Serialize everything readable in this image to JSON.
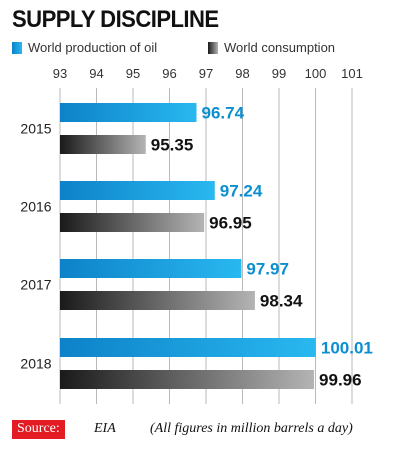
{
  "colors": {
    "production_start": "#0d82c8",
    "production_end": "#29b8f0",
    "consumption_start": "#1a1a1a",
    "consumption_end": "#b4b4b4",
    "production_label": "#0b8fd0",
    "consumption_label": "#111111",
    "source_badge": "#e31b23"
  },
  "footer": {
    "source_label": "Source:",
    "source_value": "EIA",
    "note": "(All figures in million barrels a day)"
  },
  "chart_data": {
    "type": "bar",
    "orientation": "horizontal",
    "title": "SUPPLY DISCIPLINE",
    "categories": [
      "2015",
      "2016",
      "2017",
      "2018"
    ],
    "series": [
      {
        "name": "World production of oil",
        "values": [
          96.74,
          97.24,
          97.97,
          100.01
        ]
      },
      {
        "name": "World consumption",
        "values": [
          95.35,
          96.95,
          98.34,
          99.96
        ]
      }
    ],
    "xlim": [
      93,
      101
    ],
    "ticks": [
      93,
      94,
      95,
      96,
      97,
      98,
      99,
      100,
      101
    ],
    "grid": true,
    "legend_position": "top"
  }
}
